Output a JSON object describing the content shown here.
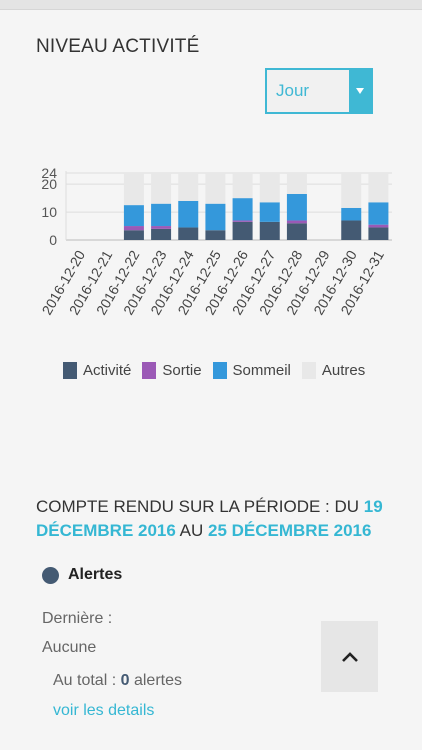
{
  "header": {
    "title": "NIVEAU ACTIVITÉ"
  },
  "period_select": {
    "value": "Jour"
  },
  "chart_data": {
    "type": "bar",
    "stacked": true,
    "categories": [
      "2016-12-20",
      "2016-12-21",
      "2016-12-22",
      "2016-12-23",
      "2016-12-24",
      "2016-12-25",
      "2016-12-26",
      "2016-12-27",
      "2016-12-28",
      "2016-12-29",
      "2016-12-30",
      "2016-12-31"
    ],
    "series": [
      {
        "name": "Activité",
        "color": "#445a73",
        "values": [
          0,
          0,
          3.5,
          4,
          4.5,
          3.5,
          6.5,
          6.5,
          6,
          0,
          7,
          4.5
        ]
      },
      {
        "name": "Sortie",
        "color": "#9b59b6",
        "values": [
          0,
          0,
          1.5,
          1,
          0,
          0,
          0.5,
          0,
          1,
          0,
          0,
          1
        ]
      },
      {
        "name": "Sommeil",
        "color": "#3498db",
        "values": [
          0,
          0,
          7.5,
          8,
          9.5,
          9.5,
          8,
          7,
          9.5,
          0,
          4.5,
          8
        ]
      },
      {
        "name": "Autres",
        "color": "#e8e8e8",
        "values": [
          0,
          0,
          11.5,
          11,
          10,
          11,
          9,
          10.5,
          7.5,
          0,
          12.5,
          10.5
        ]
      }
    ],
    "yticks": [
      0,
      10,
      20,
      24
    ],
    "ylim": [
      0,
      24
    ],
    "grid": true,
    "legend": "bottom"
  },
  "legend": {
    "activity": "Activité",
    "sortie": "Sortie",
    "sommeil": "Sommeil",
    "autres": "Autres"
  },
  "report": {
    "prefix": "COMPTE RENDU SUR LA PÉRIODE : DU",
    "start_day": "19",
    "start_month": "DÉCEMBRE 2016",
    "middle": "AU",
    "end": "25 DÉCEMBRE 2016"
  },
  "alerts": {
    "heading": "Alertes",
    "last_label": "Dernière :",
    "last_value": "Aucune",
    "total_label": "Au total :",
    "total_count": "0",
    "total_unit": "alertes",
    "details_link": "voir les details"
  }
}
